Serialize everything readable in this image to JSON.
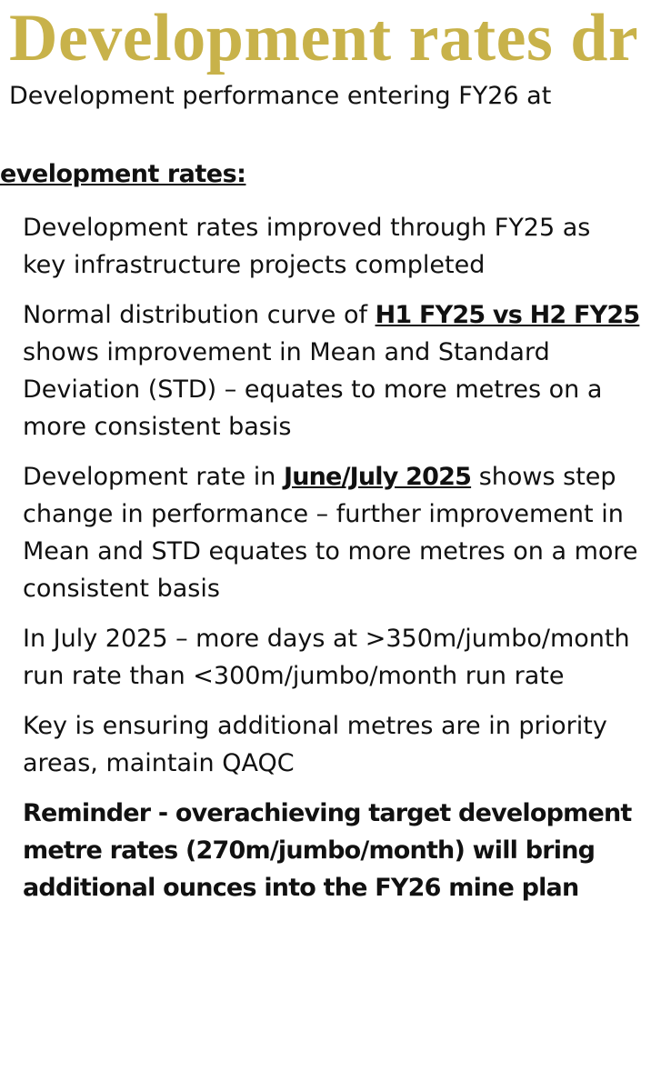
{
  "header": {
    "title": "Development rates dr",
    "subtitle": "Development performance entering FY26 at"
  },
  "section": {
    "heading": "evelopment rates:",
    "bullets": [
      [
        "Development rates improved through FY25 as key infrastructure projects completed"
      ],
      [
        "Normal distribution curve of ",
        "H1 FY25 vs H2 FY25",
        " shows improvement in Mean and Standard Deviation (STD) – equates to more metres on a more consistent basis"
      ],
      [
        "Development rate in ",
        "June/July 2025",
        " shows step change in performance – further improvement in Mean and STD equates to more metres on a more consistent basis"
      ],
      [
        "In July 2025 – more days at >350m/jumbo/month run rate than <300m/jumbo/month run rate"
      ],
      [
        "Key is ensuring additional metres are in priority areas, maintain QAQC"
      ],
      [
        "Reminder - overachieving target development metre rates (270m/jumbo/month) will bring additional ounces into the FY26 mine plan"
      ]
    ]
  }
}
